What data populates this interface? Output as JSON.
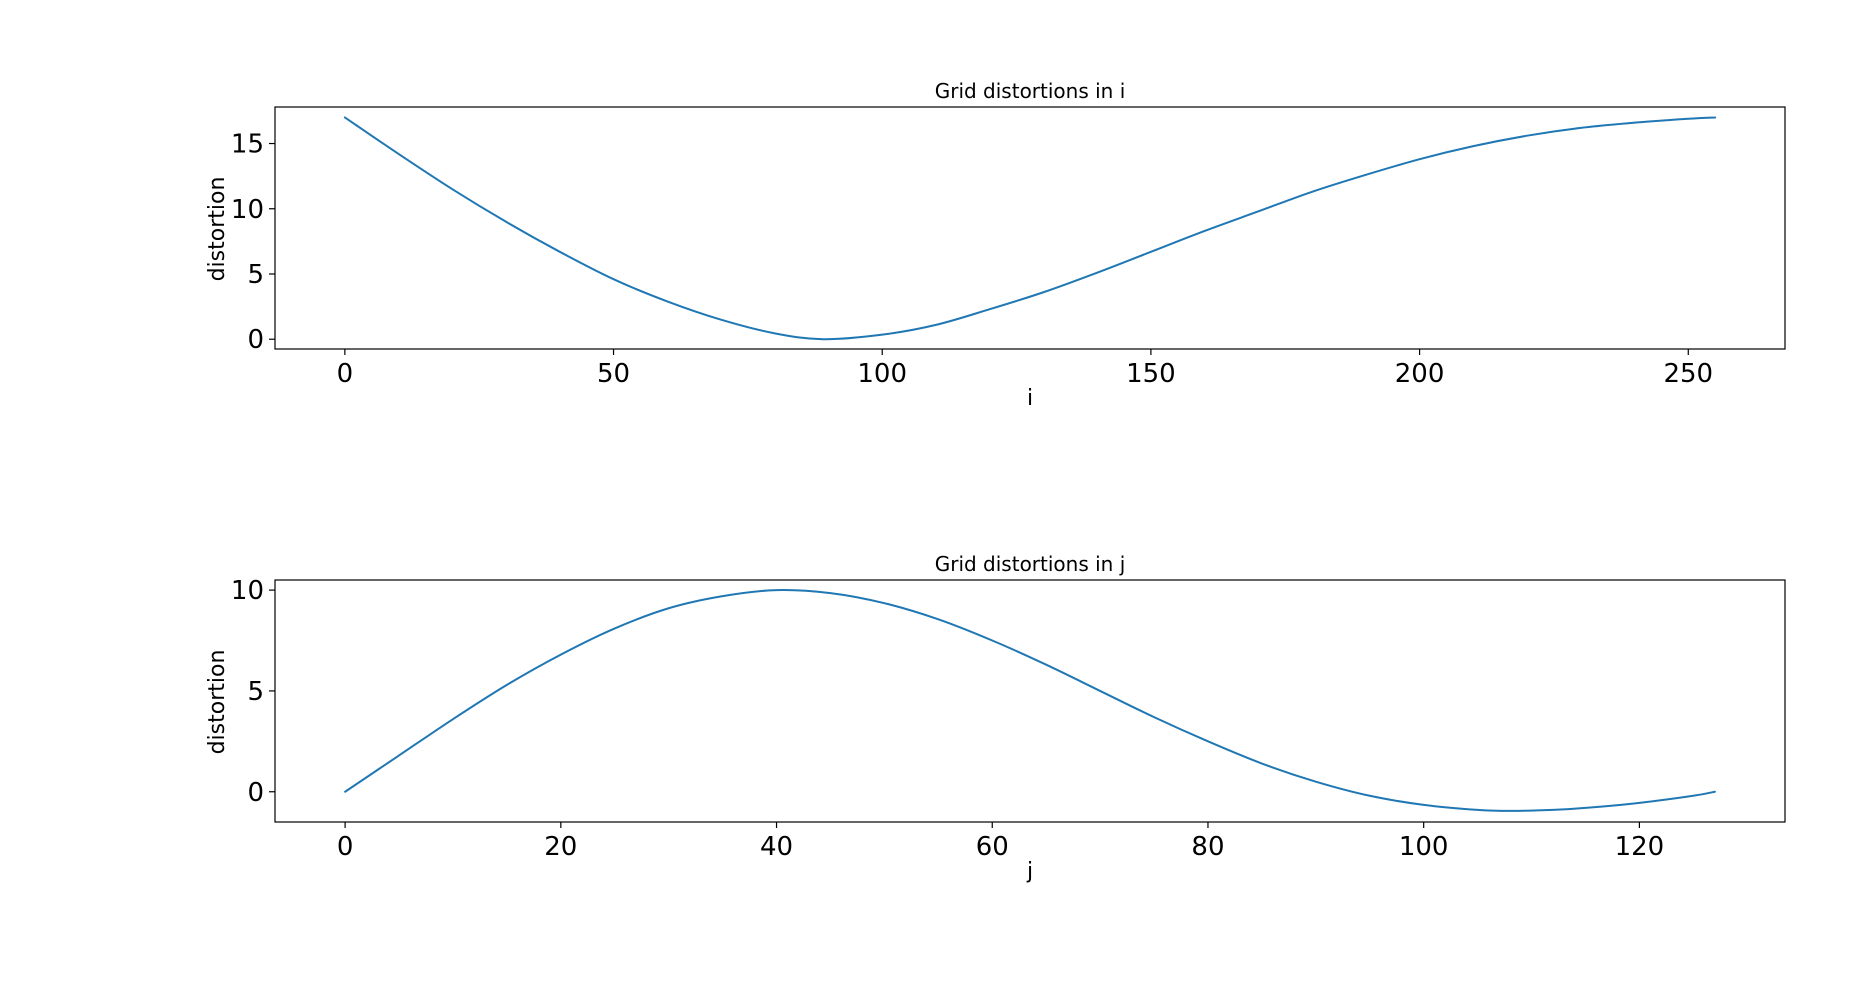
{
  "figure": {
    "background": "#ffffff",
    "line_color": "#1f77b4"
  },
  "chart_data": [
    {
      "type": "line",
      "title": "Grid distortions in i",
      "xlabel": "i",
      "ylabel": "distortion",
      "xlim": [
        -13,
        268
      ],
      "ylim": [
        -0.75,
        17.8
      ],
      "xticks": [
        0,
        50,
        100,
        150,
        200,
        250
      ],
      "yticks": [
        0,
        5,
        10,
        15
      ],
      "grid": false,
      "legend": "none",
      "series": [
        {
          "color": "#1f77b4",
          "x": [
            0,
            10,
            20,
            30,
            40,
            50,
            60,
            70,
            80,
            89,
            100,
            110,
            120,
            130,
            140,
            150,
            160,
            170,
            180,
            190,
            200,
            210,
            220,
            230,
            240,
            250,
            255
          ],
          "y": [
            17.0,
            14.2,
            11.5,
            9.0,
            6.7,
            4.6,
            2.9,
            1.5,
            0.45,
            0.0,
            0.35,
            1.1,
            2.3,
            3.6,
            5.1,
            6.7,
            8.3,
            9.8,
            11.3,
            12.6,
            13.8,
            14.8,
            15.6,
            16.2,
            16.6,
            16.9,
            17.0
          ]
        }
      ]
    },
    {
      "type": "line",
      "title": "Grid distortions in j",
      "xlabel": "j",
      "ylabel": "distortion",
      "xlim": [
        -6.5,
        133.5
      ],
      "ylim": [
        -1.5,
        10.5
      ],
      "xticks": [
        0,
        20,
        40,
        60,
        80,
        100,
        120
      ],
      "yticks": [
        0,
        5,
        10
      ],
      "grid": false,
      "legend": "none",
      "series": [
        {
          "color": "#1f77b4",
          "x": [
            0,
            5,
            10,
            15,
            20,
            25,
            30,
            35,
            40,
            45,
            50,
            55,
            60,
            65,
            70,
            75,
            80,
            85,
            90,
            95,
            100,
            105,
            108,
            112,
            115,
            120,
            125,
            127
          ],
          "y": [
            0.0,
            1.8,
            3.6,
            5.3,
            6.8,
            8.1,
            9.1,
            9.7,
            10.0,
            9.85,
            9.35,
            8.55,
            7.5,
            6.3,
            5.0,
            3.7,
            2.5,
            1.4,
            0.5,
            -0.2,
            -0.65,
            -0.9,
            -0.95,
            -0.9,
            -0.8,
            -0.55,
            -0.2,
            0.0
          ]
        }
      ]
    }
  ]
}
